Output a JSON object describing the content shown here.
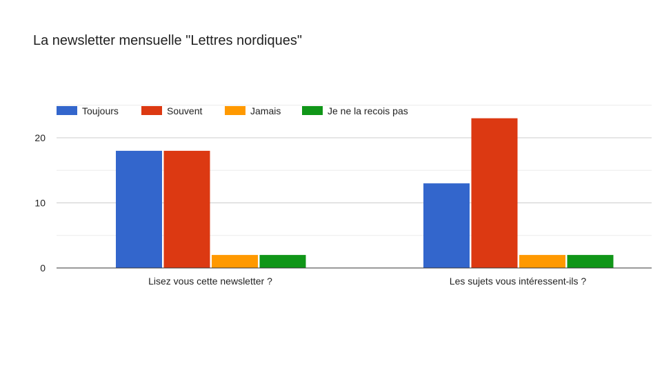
{
  "chart_data": {
    "type": "bar",
    "title": "La newsletter mensuelle \"Lettres nordiques\"",
    "categories": [
      "Lisez vous cette newsletter ?",
      "Les sujets vous intéressent-ils ?"
    ],
    "series": [
      {
        "name": "Toujours",
        "color": "#3366cc",
        "values": [
          18,
          13
        ]
      },
      {
        "name": "Souvent",
        "color": "#dc3912",
        "values": [
          18,
          23
        ]
      },
      {
        "name": "Jamais",
        "color": "#ff9900",
        "values": [
          2,
          2
        ]
      },
      {
        "name": "Je ne la recois pas",
        "color": "#109618",
        "values": [
          2,
          2
        ]
      }
    ],
    "yticks": [
      0,
      10,
      20
    ],
    "ylim": [
      0,
      25
    ],
    "grid": true,
    "legend_position": "top-left"
  }
}
